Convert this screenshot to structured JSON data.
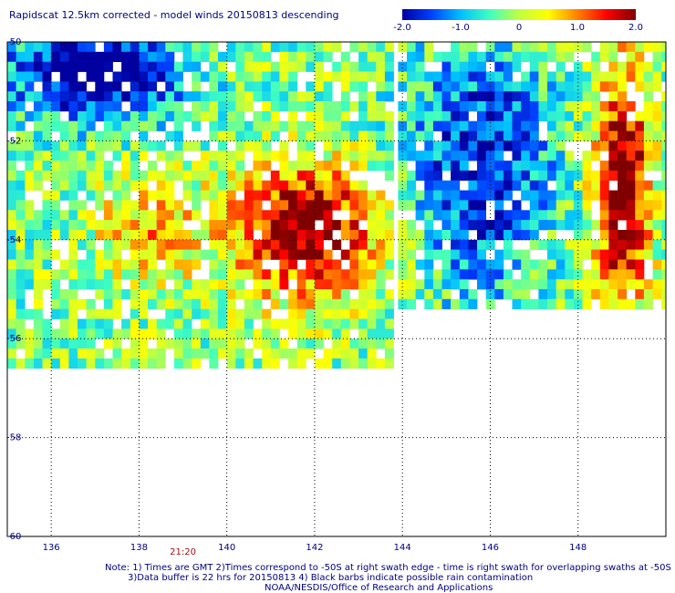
{
  "chart_data": {
    "type": "heatmap",
    "title": "Rapidscat 12.5km corrected - model winds 20150813 descending",
    "xlim": [
      135,
      150
    ],
    "ylim": [
      -60,
      -50
    ],
    "x_ticks": [
      136,
      138,
      140,
      142,
      144,
      146,
      148
    ],
    "y_ticks": [
      -50,
      -52,
      -54,
      -56,
      -58,
      -60
    ],
    "x_tick_labels": [
      "136",
      "138",
      "140",
      "142",
      "144",
      "146",
      "148"
    ],
    "y_tick_labels": [
      "-50",
      "-52",
      "-54",
      "-56",
      "-58",
      "-60"
    ],
    "grid": true,
    "colorbar": {
      "min": -2.0,
      "max": 2.0,
      "ticks": [
        -2.0,
        -1.0,
        0,
        1.0,
        2.0
      ],
      "tick_labels": [
        "-2.0",
        "-1.0",
        "0",
        "1.0",
        "2.0"
      ],
      "colors": [
        "#0000a0",
        "#0040ff",
        "#00c0ff",
        "#40ffc0",
        "#c0ff40",
        "#ffff00",
        "#ff8000",
        "#ff0000",
        "#800000"
      ]
    },
    "swath_times": [
      {
        "lon": 139.0,
        "label": "21:20"
      }
    ],
    "field_regions": [
      {
        "name": "swath-1-west",
        "lon": [
          135,
          143.8
        ],
        "lat": [
          -56.6,
          -50
        ]
      },
      {
        "name": "swath-2-east",
        "lon": [
          143.9,
          150
        ],
        "lat": [
          -55.3,
          -50
        ]
      }
    ],
    "field_features": [
      {
        "name": "anomaly-max-central",
        "lon": 141.8,
        "lat": -53.8,
        "lon_radius": 1.6,
        "lat_radius": 1.3,
        "value": 2.4
      },
      {
        "name": "anomaly-max-east-band",
        "lon": 149.0,
        "lat": -53.0,
        "lon_radius": 0.6,
        "lat_radius": 2.4,
        "value": 2.6
      },
      {
        "name": "anomaly-low-north",
        "lon": 137.0,
        "lat": -50.6,
        "lon_radius": 2.0,
        "lat_radius": 1.0,
        "value": -2.2
      },
      {
        "name": "anomaly-low-east-swath",
        "lon": 145.8,
        "lat": -52.5,
        "lon_radius": 1.6,
        "lat_radius": 2.5,
        "value": -1.6
      },
      {
        "name": "anomaly-moderate-west",
        "lon": 138.2,
        "lat": -53.8,
        "lon_radius": 1.2,
        "lat_radius": 1.2,
        "value": 0.9
      }
    ]
  },
  "notes": {
    "line1": "Note: 1) Times are GMT 2)Times correspond to -50S at right swath edge - time is right swath for overlapping swaths at -50S",
    "line2": "3)Data buffer is 22 hrs for 20150813 4) Black barbs indicate possible rain contamination",
    "line3": "NOAA/NESDIS/Office of Research and Applications"
  }
}
